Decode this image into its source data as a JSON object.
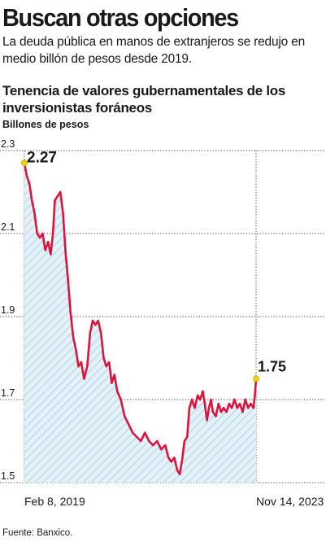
{
  "headline": "Buscan otras opciones",
  "dek": "La deuda pública en manos de extranjeros se redujo en medio billón de pesos desde 2019.",
  "chart": {
    "title": "Tenencia de valores gubernamentales de los inversionistas foráneos",
    "units": "Billones de pesos",
    "source": "Fuente: Banxico."
  },
  "chart_data": {
    "type": "area",
    "title": "Tenencia de valores gubernamentales de los inversionistas foráneos",
    "ylabel": "Billones de pesos",
    "xlabel": "",
    "ylim": [
      1.5,
      2.3
    ],
    "yticks": [
      {
        "value": 2.3,
        "label": "2.3"
      },
      {
        "value": 2.1,
        "label": "2.1"
      },
      {
        "value": 1.9,
        "label": "1.9"
      },
      {
        "value": 1.7,
        "label": "1.7"
      },
      {
        "value": 1.5,
        "label": "1.5"
      }
    ],
    "xlim": [
      "2019-02-08",
      "2023-11-14"
    ],
    "xticks": [
      {
        "value": "2019-02-08",
        "label": "Feb 8, 2019"
      },
      {
        "value": "2023-11-14",
        "label": "Nov 14, 2023"
      }
    ],
    "series": [
      {
        "points": [
          [
            "2019-02-08",
            2.27
          ],
          [
            "2019-02-25",
            2.24
          ],
          [
            "2019-03-18",
            2.22
          ],
          [
            "2019-04-05",
            2.18
          ],
          [
            "2019-04-25",
            2.15
          ],
          [
            "2019-05-15",
            2.1
          ],
          [
            "2019-06-05",
            2.09
          ],
          [
            "2019-06-25",
            2.1
          ],
          [
            "2019-07-15",
            2.06
          ],
          [
            "2019-08-05",
            2.08
          ],
          [
            "2019-08-25",
            2.05
          ],
          [
            "2019-09-10",
            2.1
          ],
          [
            "2019-09-25",
            2.18
          ],
          [
            "2019-10-15",
            2.19
          ],
          [
            "2019-11-05",
            2.2
          ],
          [
            "2019-11-25",
            2.15
          ],
          [
            "2019-12-15",
            2.05
          ],
          [
            "2020-01-01",
            1.99
          ],
          [
            "2020-01-20",
            1.91
          ],
          [
            "2020-02-10",
            1.85
          ],
          [
            "2020-03-01",
            1.82
          ],
          [
            "2020-03-20",
            1.78
          ],
          [
            "2020-04-10",
            1.79
          ],
          [
            "2020-05-01",
            1.75
          ],
          [
            "2020-05-25",
            1.78
          ],
          [
            "2020-06-15",
            1.86
          ],
          [
            "2020-07-05",
            1.89
          ],
          [
            "2020-07-25",
            1.88
          ],
          [
            "2020-08-15",
            1.89
          ],
          [
            "2020-09-05",
            1.86
          ],
          [
            "2020-09-25",
            1.8
          ],
          [
            "2020-10-15",
            1.78
          ],
          [
            "2020-11-05",
            1.79
          ],
          [
            "2020-11-25",
            1.74
          ],
          [
            "2020-12-15",
            1.76
          ],
          [
            "2021-01-05",
            1.72
          ],
          [
            "2021-02-01",
            1.7
          ],
          [
            "2021-03-01",
            1.66
          ],
          [
            "2021-04-01",
            1.64
          ],
          [
            "2021-05-01",
            1.62
          ],
          [
            "2021-06-01",
            1.61
          ],
          [
            "2021-07-01",
            1.6
          ],
          [
            "2021-08-01",
            1.62
          ],
          [
            "2021-09-01",
            1.6
          ],
          [
            "2021-10-01",
            1.59
          ],
          [
            "2021-11-01",
            1.6
          ],
          [
            "2021-12-01",
            1.58
          ],
          [
            "2022-01-01",
            1.59
          ],
          [
            "2022-01-25",
            1.56
          ],
          [
            "2022-02-15",
            1.55
          ],
          [
            "2022-03-10",
            1.56
          ],
          [
            "2022-04-01",
            1.53
          ],
          [
            "2022-04-20",
            1.52
          ],
          [
            "2022-05-10",
            1.56
          ],
          [
            "2022-05-25",
            1.6
          ],
          [
            "2022-06-15",
            1.61
          ],
          [
            "2022-07-01",
            1.68
          ],
          [
            "2022-07-20",
            1.7
          ],
          [
            "2022-08-10",
            1.68
          ],
          [
            "2022-09-01",
            1.71
          ],
          [
            "2022-09-20",
            1.7
          ],
          [
            "2022-10-10",
            1.72
          ],
          [
            "2022-10-25",
            1.69
          ],
          [
            "2022-11-10",
            1.65
          ],
          [
            "2022-11-25",
            1.68
          ],
          [
            "2022-12-10",
            1.7
          ],
          [
            "2022-12-25",
            1.67
          ],
          [
            "2023-01-15",
            1.66
          ],
          [
            "2023-02-05",
            1.69
          ],
          [
            "2023-02-25",
            1.67
          ],
          [
            "2023-03-15",
            1.68
          ],
          [
            "2023-04-05",
            1.67
          ],
          [
            "2023-04-25",
            1.69
          ],
          [
            "2023-05-15",
            1.68
          ],
          [
            "2023-06-05",
            1.7
          ],
          [
            "2023-06-25",
            1.68
          ],
          [
            "2023-07-15",
            1.69
          ],
          [
            "2023-08-05",
            1.67
          ],
          [
            "2023-08-25",
            1.7
          ],
          [
            "2023-09-15",
            1.68
          ],
          [
            "2023-10-05",
            1.69
          ],
          [
            "2023-10-25",
            1.68
          ],
          [
            "2023-11-05",
            1.71
          ],
          [
            "2023-11-14",
            1.75
          ]
        ]
      }
    ],
    "annotations": [
      {
        "date": "2019-02-08",
        "value": 2.27,
        "label": "2.27"
      },
      {
        "date": "2023-11-14",
        "value": 1.75,
        "label": "1.75"
      }
    ],
    "grid": true,
    "colors": {
      "line": "#dc143c",
      "hatch": "#9ec8e3",
      "marker": "#f2d200",
      "grid": "#3a3a3a"
    }
  }
}
